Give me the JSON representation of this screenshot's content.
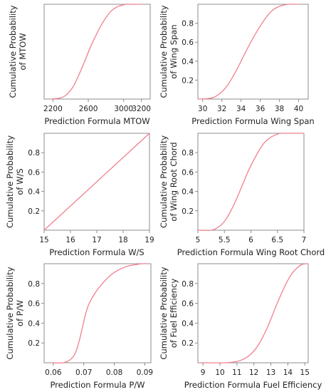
{
  "chart_data": [
    {
      "type": "line",
      "title": "",
      "xlabel": "Prediction Formula MTOW",
      "ylabel": [
        "Cumulative Probability",
        "of MTOW"
      ],
      "xlim": [
        2100,
        3300
      ],
      "ylim": [
        0,
        1
      ],
      "xticks": [
        2200,
        2600,
        3000,
        3200
      ],
      "xtick_labels": [
        "2200",
        "2600",
        "3000",
        "3200"
      ],
      "yticks": [],
      "ytick_labels": [],
      "series": [
        {
          "x": [
            2180,
            2280,
            2330,
            2380,
            2440,
            2500,
            2560,
            2620,
            2680,
            2740,
            2800,
            2860,
            2920,
            2980,
            3030,
            3060,
            3200
          ],
          "y": [
            0,
            0.01,
            0.03,
            0.07,
            0.15,
            0.27,
            0.4,
            0.54,
            0.66,
            0.77,
            0.86,
            0.93,
            0.97,
            0.99,
            1.0,
            1.0,
            1.0
          ]
        }
      ]
    },
    {
      "type": "line",
      "title": "",
      "xlabel": "Prediction Formula Wing Span",
      "ylabel": [
        "Cumulative Probability",
        "of Wing Span"
      ],
      "xlim": [
        29.5,
        41
      ],
      "ylim": [
        0,
        1
      ],
      "xticks": [
        30,
        32,
        34,
        36,
        38,
        40
      ],
      "xtick_labels": [
        "30",
        "32",
        "34",
        "36",
        "38",
        "40"
      ],
      "yticks": [
        0.2,
        0.4,
        0.6,
        0.8
      ],
      "ytick_labels": [
        "0.2",
        "0.4",
        "0.6",
        "0.8"
      ],
      "series": [
        {
          "x": [
            29.6,
            30.5,
            31.2,
            31.8,
            32.4,
            33.0,
            33.6,
            34.2,
            34.8,
            35.4,
            36.0,
            36.6,
            37.2,
            37.8,
            38.4,
            39.0,
            40.0
          ],
          "y": [
            0,
            0.005,
            0.02,
            0.06,
            0.12,
            0.21,
            0.32,
            0.44,
            0.56,
            0.67,
            0.77,
            0.86,
            0.93,
            0.97,
            0.99,
            1.0,
            1.0
          ]
        }
      ]
    },
    {
      "type": "line",
      "title": "",
      "xlabel": "Prediction Formula W/S",
      "ylabel": [
        "Cumulative Probability",
        "of W/S"
      ],
      "xlim": [
        15,
        19
      ],
      "ylim": [
        0,
        1
      ],
      "xticks": [
        15,
        16,
        17,
        18,
        19
      ],
      "xtick_labels": [
        "15",
        "16",
        "17",
        "18",
        "19"
      ],
      "yticks": [
        0.2,
        0.4,
        0.6,
        0.8
      ],
      "ytick_labels": [
        "0.2",
        "0.4",
        "0.6",
        "0.8"
      ],
      "series": [
        {
          "x": [
            15,
            19
          ],
          "y": [
            0,
            1
          ]
        }
      ]
    },
    {
      "type": "line",
      "title": "",
      "xlabel": "Prediction Formula Wing Root Chord",
      "ylabel": [
        "Cumulative Probability",
        "of Wing Root Chord"
      ],
      "xlim": [
        5,
        7
      ],
      "ylim": [
        0,
        1
      ],
      "xticks": [
        5,
        5.5,
        6,
        6.5,
        7
      ],
      "xtick_labels": [
        "5",
        "5.5",
        "6",
        "6.5",
        "7"
      ],
      "yticks": [
        0.2,
        0.4,
        0.6,
        0.8
      ],
      "ytick_labels": [
        "0.2",
        "0.4",
        "0.6",
        "0.8"
      ],
      "series": [
        {
          "x": [
            5.0,
            5.25,
            5.35,
            5.45,
            5.55,
            5.65,
            5.75,
            5.85,
            5.95,
            6.05,
            6.15,
            6.25,
            6.35,
            6.45,
            6.55,
            6.65,
            7.0
          ],
          "y": [
            0,
            0.0,
            0.02,
            0.06,
            0.13,
            0.23,
            0.35,
            0.48,
            0.61,
            0.72,
            0.82,
            0.9,
            0.95,
            0.98,
            1.0,
            1.0,
            1.0
          ]
        }
      ]
    },
    {
      "type": "line",
      "title": "",
      "xlabel": "Prediction Formula P/W",
      "ylabel": [
        "Cumulative Probability",
        "of P/W"
      ],
      "xlim": [
        0.057,
        0.092
      ],
      "ylim": [
        0,
        1
      ],
      "xticks": [
        0.06,
        0.07,
        0.08,
        0.09
      ],
      "xtick_labels": [
        "0.06",
        "0.07",
        "0.08",
        "0.09"
      ],
      "yticks": [
        0.2,
        0.4,
        0.6,
        0.8
      ],
      "ytick_labels": [
        "0.2",
        "0.4",
        "0.6",
        "0.8"
      ],
      "series": [
        {
          "x": [
            0.0595,
            0.063,
            0.065,
            0.0665,
            0.0675,
            0.0685,
            0.0695,
            0.0705,
            0.0715,
            0.073,
            0.075,
            0.077,
            0.079,
            0.081,
            0.083,
            0.085,
            0.087,
            0.089,
            0.091
          ],
          "y": [
            0,
            0.0,
            0.02,
            0.06,
            0.12,
            0.22,
            0.35,
            0.48,
            0.58,
            0.67,
            0.76,
            0.83,
            0.89,
            0.93,
            0.96,
            0.98,
            0.99,
            1.0,
            1.0
          ]
        }
      ]
    },
    {
      "type": "line",
      "title": "",
      "xlabel": "Prediction Formula Fuel Efficiency",
      "ylabel": [
        "Cumulative Probability",
        "of Fuel Efficiency"
      ],
      "xlim": [
        8.7,
        15.2
      ],
      "ylim": [
        0,
        1
      ],
      "xticks": [
        9,
        10,
        11,
        12,
        13,
        14,
        15
      ],
      "xtick_labels": [
        "9",
        "10",
        "11",
        "12",
        "13",
        "14",
        "15"
      ],
      "yticks": [
        0.2,
        0.4,
        0.6,
        0.8
      ],
      "ytick_labels": [
        "0.2",
        "0.4",
        "0.6",
        "0.8"
      ],
      "series": [
        {
          "x": [
            8.9,
            10.3,
            10.9,
            11.3,
            11.7,
            12.1,
            12.4,
            12.7,
            13.0,
            13.3,
            13.6,
            13.9,
            14.2,
            14.5,
            14.8,
            15.1
          ],
          "y": [
            0,
            0.0,
            0.01,
            0.03,
            0.07,
            0.14,
            0.22,
            0.32,
            0.44,
            0.57,
            0.69,
            0.8,
            0.89,
            0.95,
            0.99,
            1.0
          ]
        }
      ]
    }
  ],
  "style": {
    "line_color": "#f0808e",
    "axis_color": "#8c8c8c",
    "text_color": "#222222"
  }
}
